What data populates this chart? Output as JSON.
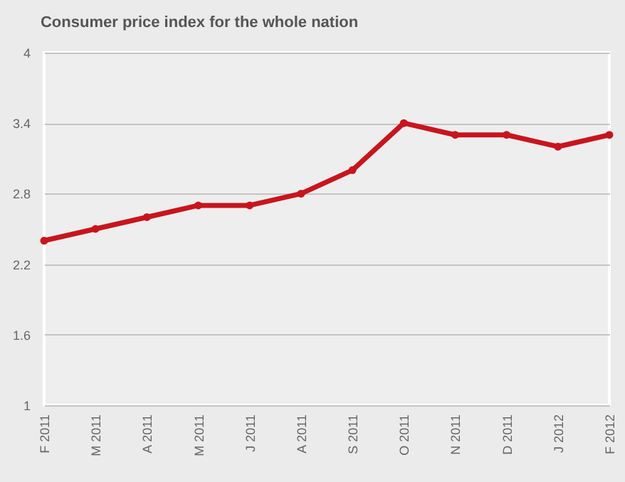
{
  "chart_data": {
    "type": "line",
    "title": "Consumer price index for the whole nation",
    "categories": [
      "F 2011",
      "M 2011",
      "A 2011",
      "M 2011",
      "J 2011",
      "A 2011",
      "S 2011",
      "O 2011",
      "N 2011",
      "D 2011",
      "J 2012",
      "F 2012"
    ],
    "series": [
      {
        "color": "#c8151d",
        "values": [
          2.4,
          2.5,
          2.6,
          2.7,
          2.7,
          2.8,
          3.0,
          3.4,
          3.3,
          3.3,
          3.2,
          3.3
        ]
      }
    ],
    "ylim": [
      1,
      4
    ],
    "yticks": [
      1,
      1.6,
      2.2,
      2.8,
      3.4,
      4
    ],
    "grid": "y",
    "marker": "circle",
    "legend": false
  }
}
